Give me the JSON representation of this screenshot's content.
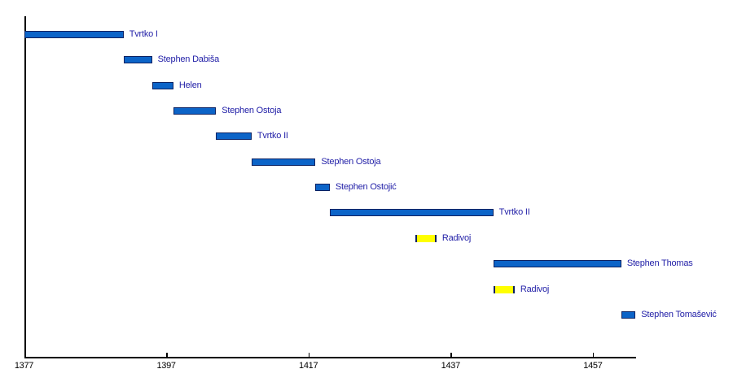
{
  "chart_data": {
    "type": "bar",
    "variant": "horizontal-timeline-gantt",
    "subject": "reign-timeline",
    "x_axis": {
      "min": 1377,
      "max": 1463,
      "ticks": [
        {
          "year": 1377,
          "label": "1377"
        },
        {
          "year": 1397,
          "label": "1397"
        },
        {
          "year": 1417,
          "label": "1417"
        },
        {
          "year": 1437,
          "label": "1437"
        },
        {
          "year": 1457,
          "label": "1457"
        }
      ]
    },
    "bars": [
      {
        "name": "Tvrtko I",
        "start": 1377,
        "end": 1391,
        "color": "blue"
      },
      {
        "name": "Stephen Dabiša",
        "start": 1391,
        "end": 1395,
        "color": "blue"
      },
      {
        "name": "Helen",
        "start": 1395,
        "end": 1398,
        "color": "blue"
      },
      {
        "name": "Stephen Ostoja",
        "start": 1398,
        "end": 1404,
        "color": "blue"
      },
      {
        "name": "Tvrtko II",
        "start": 1404,
        "end": 1409,
        "color": "blue"
      },
      {
        "name": "Stephen Ostoja",
        "start": 1409,
        "end": 1418,
        "color": "blue"
      },
      {
        "name": "Stephen Ostojić",
        "start": 1418,
        "end": 1420,
        "color": "blue"
      },
      {
        "name": "Tvrtko II",
        "start": 1420,
        "end": 1443,
        "color": "blue"
      },
      {
        "name": "Radivoj",
        "start": 1432,
        "end": 1435,
        "color": "yellow"
      },
      {
        "name": "Stephen Thomas",
        "start": 1443,
        "end": 1461,
        "color": "blue"
      },
      {
        "name": "Radivoj",
        "start": 1443,
        "end": 1446,
        "color": "yellow"
      },
      {
        "name": "Stephen Tomašević",
        "start": 1461,
        "end": 1463,
        "color": "blue"
      }
    ],
    "legend": null,
    "grid": false,
    "colors": {
      "bar_blue_fill": "#0c64c8",
      "bar_yellow_fill": "#ffff00",
      "bar_border": "#0b2161",
      "label_text": "#2321a8",
      "axis": "#000000",
      "background": "#ffffff"
    }
  }
}
